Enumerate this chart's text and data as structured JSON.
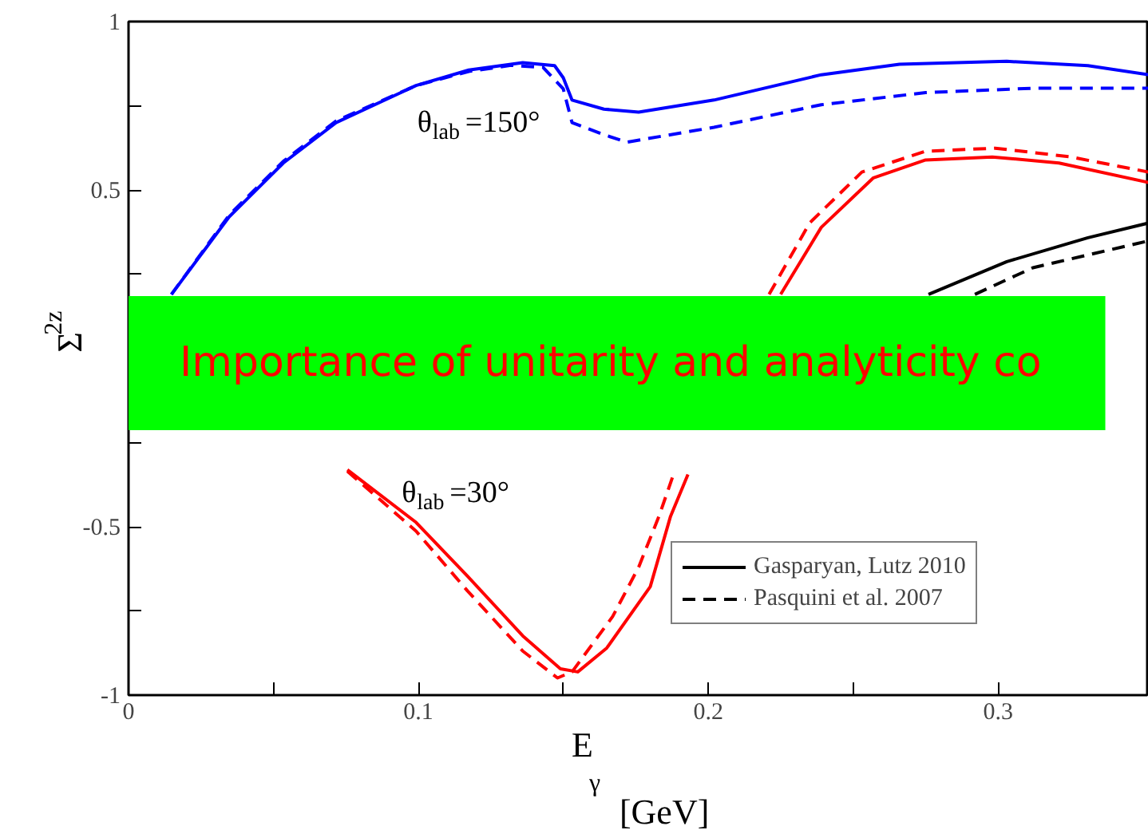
{
  "chart_data": {
    "type": "line",
    "xlabel": "E$_{γ}$ [GeV]",
    "ylabel": "Σ$_{2z}$",
    "xlim": [
      0,
      0.352
    ],
    "ylim": [
      -1,
      1
    ],
    "xticks": [
      0,
      {
        "value": 0.05,
        "label": null
      },
      0.1,
      {
        "value": 0.15,
        "label": null
      },
      0.2,
      {
        "value": 0.25,
        "label": null
      },
      0.3
    ],
    "yticks": [
      -1,
      {
        "value": -0.75,
        "label": null
      },
      -0.5,
      {
        "value": -0.25,
        "label": null
      },
      {
        "value": 0,
        "label": null
      },
      {
        "value": 0.25,
        "label": null
      },
      0.5,
      {
        "value": 0.75,
        "label": null
      },
      1
    ],
    "grid": false,
    "legend": "bottom",
    "series": [
      {
        "color": "#0000ff",
        "line_style": "solid",
        "x": [
          0.0148,
          0.0347,
          0.0534,
          0.0716,
          0.0992,
          0.1174,
          0.136,
          0.147,
          0.15,
          0.153,
          0.164,
          0.176,
          0.202,
          0.239,
          0.266,
          0.303,
          0.331,
          0.352
        ],
        "values": [
          0.19,
          0.42,
          0.58,
          0.7,
          0.81,
          0.856,
          0.878,
          0.869,
          0.833,
          0.767,
          0.74,
          0.731,
          0.767,
          0.842,
          0.873,
          0.882,
          0.869,
          0.842
        ]
      },
      {
        "color": "#0000ff",
        "line_style": "dashed",
        "x": [
          0.0148,
          0.0347,
          0.0534,
          0.0716,
          0.0992,
          0.1174,
          0.132,
          0.143,
          0.15,
          0.153,
          0.164,
          0.172,
          0.202,
          0.239,
          0.275,
          0.312,
          0.352
        ],
        "values": [
          0.19,
          0.425,
          0.585,
          0.705,
          0.81,
          0.852,
          0.87,
          0.864,
          0.8,
          0.7,
          0.664,
          0.642,
          0.686,
          0.753,
          0.789,
          0.802,
          0.802
        ]
      },
      {
        "color": "#ff0000",
        "line_style": "solid",
        "x": [
          0.0755,
          0.0992,
          0.117,
          0.136,
          0.149,
          0.155,
          0.165,
          0.18,
          0.187,
          0.193,
          0.21,
          0.225,
          0.239,
          0.257,
          0.275,
          0.298,
          0.321,
          0.352
        ],
        "values": [
          -0.331,
          -0.487,
          -0.647,
          -0.824,
          -0.922,
          -0.931,
          -0.86,
          -0.678,
          -0.469,
          -0.345,
          null,
          0.19,
          0.389,
          0.536,
          0.589,
          0.598,
          0.58,
          0.522
        ]
      },
      {
        "color": "#ff0000",
        "line_style": "dashed",
        "x": [
          0.0755,
          0.0992,
          0.117,
          0.136,
          0.148,
          0.153,
          0.167,
          0.176,
          0.183,
          0.188,
          0.205,
          0.221,
          0.235,
          0.253,
          0.275,
          0.299,
          0.325,
          0.352
        ],
        "values": [
          -0.335,
          -0.513,
          -0.691,
          -0.869,
          -0.949,
          -0.931,
          -0.767,
          -0.62,
          -0.469,
          -0.345,
          null,
          0.19,
          0.402,
          0.553,
          0.615,
          0.624,
          0.598,
          0.553
        ]
      },
      {
        "name": "Gasparyan, Lutz 2010",
        "color": "#000000",
        "line_style": "solid",
        "x": [
          0.276,
          0.303,
          0.331,
          0.352
        ],
        "values": [
          0.19,
          0.287,
          0.358,
          0.402
        ]
      },
      {
        "name": "Pasquini et al. 2007",
        "color": "#000000",
        "line_style": "dashed",
        "x": [
          0.292,
          0.312,
          0.352
        ],
        "values": [
          0.19,
          0.269,
          0.349
        ]
      }
    ],
    "annotations": [
      "θ$_{lab}$=150°",
      "θ$_{lab}$=30°",
      "Importance of unitarity and analyticity co"
    ]
  }
}
